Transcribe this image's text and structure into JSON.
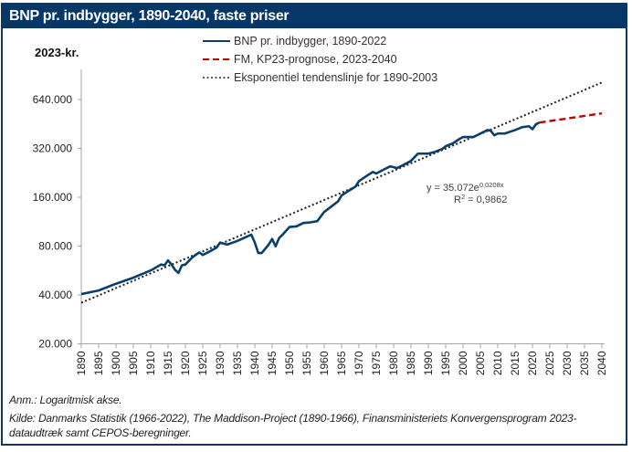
{
  "header": {
    "title": "BNP pr. indbygger, 1890-2040, faste priser"
  },
  "colors": {
    "title_bg": "#063766",
    "actual": "#0b3f6b",
    "forecast": "#c00000",
    "trend": "#222222",
    "axis": "#a6a6a6"
  },
  "chart_data": {
    "type": "line",
    "title": "BNP pr. indbygger, 1890-2040, faste priser",
    "ylabel": "2023-kr.",
    "xlabel": "",
    "yscale": "log2",
    "ylim": [
      20000,
      900000
    ],
    "xlim": [
      1890,
      2040
    ],
    "y_ticks": [
      20000,
      40000,
      80000,
      160000,
      320000,
      640000
    ],
    "y_tick_labels": [
      "20.000",
      "40.000",
      "80.000",
      "160.000",
      "320.000",
      "640.000"
    ],
    "x_ticks": [
      1890,
      1895,
      1900,
      1905,
      1910,
      1915,
      1920,
      1925,
      1930,
      1935,
      1940,
      1945,
      1950,
      1955,
      1960,
      1965,
      1970,
      1975,
      1980,
      1985,
      1990,
      1995,
      2000,
      2005,
      2010,
      2015,
      2020,
      2025,
      2030,
      2035,
      2040
    ],
    "x_tick_labels": [
      "1890",
      "1895",
      "1900",
      "1905",
      "1910",
      "1915",
      "1920",
      "1925",
      "1930",
      "1935",
      "1940",
      "1945",
      "1950",
      "1955",
      "1960",
      "1965",
      "1970",
      "1975",
      "1980",
      "1985",
      "1990",
      "1995",
      "2000",
      "2005",
      "2010",
      "2015",
      "2020",
      "2025",
      "2030",
      "2035",
      "2040"
    ],
    "legend_position": "top",
    "grid": false,
    "series": [
      {
        "name": "BNP pr. indbygger, 1890-2022",
        "style": "solid",
        "x": [
          1890,
          1895,
          1900,
          1905,
          1910,
          1913,
          1914,
          1915,
          1916,
          1917,
          1918,
          1919,
          1920,
          1922,
          1924,
          1925,
          1927,
          1929,
          1930,
          1932,
          1935,
          1939,
          1940,
          1941,
          1942,
          1944,
          1945,
          1946,
          1947,
          1948,
          1950,
          1952,
          1954,
          1956,
          1958,
          1960,
          1962,
          1964,
          1965,
          1967,
          1969,
          1970,
          1972,
          1974,
          1975,
          1977,
          1979,
          1980,
          1981,
          1983,
          1985,
          1987,
          1990,
          1992,
          1994,
          1995,
          1997,
          1999,
          2000,
          2003,
          2005,
          2007,
          2008,
          2009,
          2010,
          2012,
          2015,
          2017,
          2019,
          2020,
          2021,
          2022
        ],
        "values": [
          40500,
          42600,
          46900,
          51100,
          56600,
          61600,
          60900,
          65300,
          61600,
          57200,
          54600,
          60900,
          61600,
          68200,
          73100,
          70500,
          74100,
          78300,
          84100,
          81700,
          86100,
          94100,
          84100,
          72500,
          72500,
          81700,
          88500,
          79700,
          89700,
          94100,
          104900,
          105800,
          111000,
          112000,
          114000,
          130000,
          140000,
          151000,
          164000,
          175000,
          186000,
          201000,
          215000,
          229000,
          224000,
          236000,
          248000,
          245000,
          242000,
          254000,
          268000,
          297000,
          297000,
          305000,
          317000,
          330000,
          343000,
          366000,
          376000,
          376000,
          395000,
          415000,
          411000,
          385000,
          395000,
          395000,
          415000,
          432000,
          438000,
          420000,
          450000,
          462000
        ]
      },
      {
        "name": "FM, KP23-prognose, 2023-2040",
        "style": "dashed",
        "x": [
          2022,
          2025,
          2030,
          2035,
          2040
        ],
        "values": [
          462000,
          472000,
          489000,
          507000,
          526000
        ]
      },
      {
        "name": "Eksponentiel tendenslinje for 1890-2003",
        "style": "dotted",
        "x": [
          1890,
          2040
        ],
        "values": [
          35800,
          814000
        ]
      }
    ],
    "annotations": {
      "equation_prefix": "y = 35.072e",
      "equation_exponent": "0,0208x",
      "r2_prefix": "R",
      "r2_sup": "2",
      "r2_value": " = 0,9862"
    }
  },
  "footer": {
    "note": "Anm.: Logaritmisk akse.",
    "source_line1": "Kilde: Danmarks Statistik (1966-2022), The Maddison-Project (1890-1966), Finansministeriets Konvergensprogram 2023-",
    "source_line2": "dataudtræk samt CEPOS-beregninger."
  }
}
